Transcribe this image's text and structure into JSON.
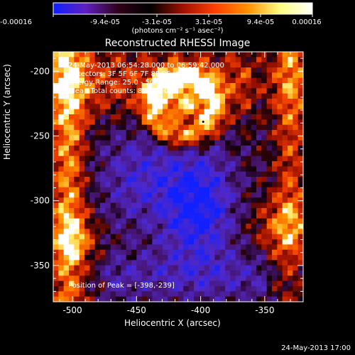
{
  "colorbar": {
    "ticks": [
      "-0.00016",
      "-9.4e-05",
      "-3.1e-05",
      "3.1e-05",
      "9.4e-05",
      "0.00016"
    ],
    "units": "(photons cm⁻² s⁻¹ asec⁻²)",
    "colors": [
      "#1020ff",
      "#6020c0",
      "#300018",
      "#000000",
      "#a01000",
      "#ff4000",
      "#ff9000",
      "#ffff80",
      "#ffffff"
    ]
  },
  "info": {
    "line1": "24-May-2013 06:54:28.000 to 06:59:42.000",
    "line2": "Detectors: 3F 5F 6F 7F 8F 9F, Att 0",
    "line3": "Energy Range: 25.0 - 50.0 keV",
    "line4": "Clean     Total counts: 8.28E+03",
    "peak": "Position of Peak = [-398,-239]"
  },
  "footer": "24-May-2013 17:00",
  "chart_data": {
    "type": "heatmap",
    "title": "Reconstructed RHESSI Image",
    "xlabel": "Heliocentric X (arcsec)",
    "ylabel": "Heliocentric Y (arcsec)",
    "xlim": [
      -515,
      -320
    ],
    "ylim": [
      -378,
      -185
    ],
    "xticks": [
      -500,
      -450,
      -400,
      -350
    ],
    "yticks": [
      -200,
      -250,
      -300,
      -350
    ],
    "xtick_labels": [
      "-500",
      "-450",
      "-400",
      "-350"
    ],
    "ytick_labels": [
      "-200",
      "-250",
      "-300",
      "-350"
    ],
    "zlim": [
      -0.00016,
      0.00016
    ],
    "peak_position": [
      -398,
      -239
    ],
    "grid_size": [
      48,
      48
    ],
    "colormap": "blue-purple-black-red-orange-yellow-white"
  }
}
